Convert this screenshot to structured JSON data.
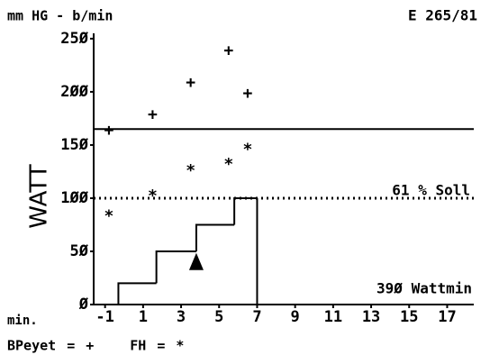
{
  "chart_data": {
    "type": "scatter",
    "title": "mm HG - b/min",
    "subtitle": "E 265/81",
    "y_label": "WATT",
    "x_label": "min.",
    "xlim": [
      -1.6,
      18.4
    ],
    "xticks": [
      -1,
      1,
      3,
      5,
      7,
      9,
      11,
      13,
      15,
      17
    ],
    "ylim": [
      0,
      255
    ],
    "yticks": [
      {
        "value": 0,
        "label": "Ø"
      },
      {
        "value": 50,
        "label": "5Ø"
      },
      {
        "value": 100,
        "label": "1ØØ"
      },
      {
        "value": 150,
        "label": "15Ø"
      },
      {
        "value": 200,
        "label": "2ØØ"
      },
      {
        "value": 250,
        "label": "25Ø"
      }
    ],
    "legend_separator": "=",
    "series": [
      {
        "name": "BPeyet",
        "marker": "+",
        "color": "#000000",
        "x": [
          -0.8,
          1.5,
          3.5,
          5.5,
          6.5
        ],
        "values": [
          163,
          178,
          208,
          238,
          198
        ]
      },
      {
        "name": "FH",
        "marker": "*",
        "color": "#000000",
        "x": [
          -0.8,
          1.5,
          3.5,
          5.5,
          6.5
        ],
        "values": [
          85,
          104,
          128,
          134,
          148
        ]
      }
    ],
    "step_x": [
      -0.3,
      1.7,
      3.8,
      5.8,
      7
    ],
    "step_values": [
      20,
      50,
      75,
      100
    ],
    "reference_lines": [
      {
        "value": 165,
        "style": "solid"
      },
      {
        "value": 100,
        "style": "dotted",
        "label": "61 % Soll"
      }
    ],
    "triangle": {
      "x": 3.8,
      "y": 40
    },
    "annotation": "39Ø Wattmin"
  }
}
